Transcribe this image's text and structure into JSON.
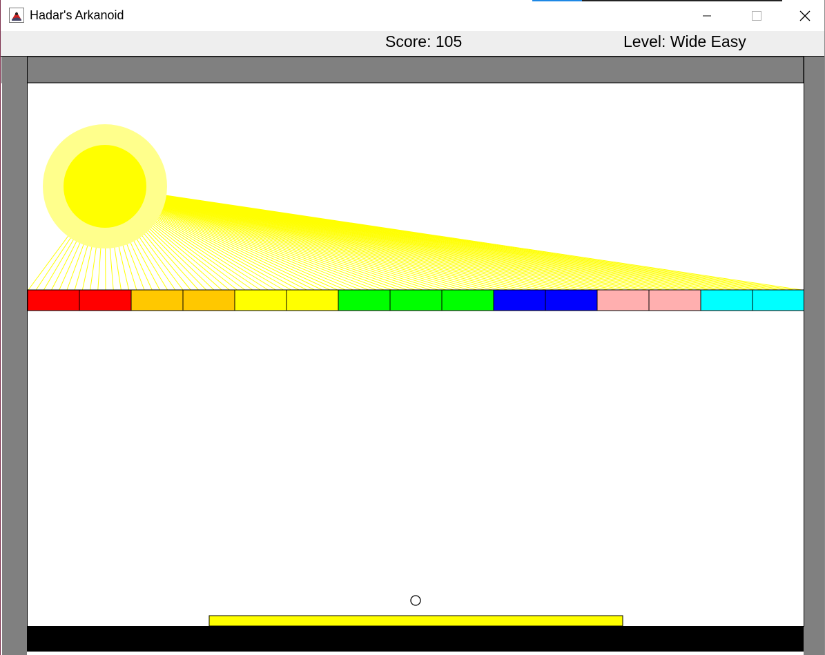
{
  "window": {
    "title": "Hadar's Arkanoid",
    "icons": {
      "app": "java-cup-icon",
      "minimize": "minimize-icon",
      "maximize": "maximize-icon",
      "close": "close-icon"
    }
  },
  "status": {
    "score_label": "Score: 105",
    "level_label": "Level: Wide Easy"
  },
  "colors": {
    "border_block": "#808080",
    "death_region": "#000000",
    "sun_outer": "#ffff8c",
    "sun_inner": "#ffff00",
    "rays": "#ffff00",
    "paddle": "#ffff00",
    "background": "#ffffff"
  },
  "blocks": [
    {
      "color": "#ff0000"
    },
    {
      "color": "#ff0000"
    },
    {
      "color": "#ffc800"
    },
    {
      "color": "#ffc800"
    },
    {
      "color": "#ffff00"
    },
    {
      "color": "#ffff00"
    },
    {
      "color": "#00ff00"
    },
    {
      "color": "#00ff00"
    },
    {
      "color": "#00ff00"
    },
    {
      "color": "#0000ff"
    },
    {
      "color": "#0000ff"
    },
    {
      "color": "#ffafaf"
    },
    {
      "color": "#ffafaf"
    },
    {
      "color": "#00ffff"
    },
    {
      "color": "#00ffff"
    }
  ]
}
